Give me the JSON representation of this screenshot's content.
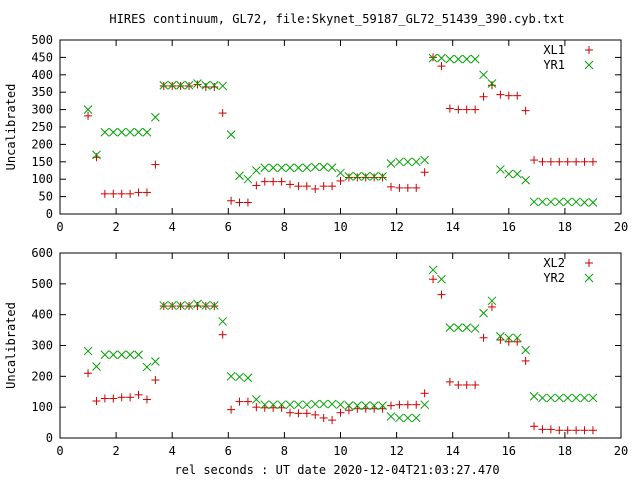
{
  "title": "HIRES continuum, GL72, file:Skynet_59187_GL72_51439_390.cyb.txt",
  "xlabel": "rel seconds : UT date 2020-12-04T21:03:27.470",
  "chart_data": [
    {
      "type": "scatter",
      "ylabel": "Uncalibrated",
      "xlim": [
        0,
        20
      ],
      "ylim": [
        0,
        500
      ],
      "xticks": [
        0,
        2,
        4,
        6,
        8,
        10,
        12,
        14,
        16,
        18,
        20
      ],
      "yticks": [
        0,
        50,
        100,
        150,
        200,
        250,
        300,
        350,
        400,
        450,
        500
      ],
      "legend_position": "top-right",
      "series": [
        {
          "name": "XL1",
          "marker": "plus",
          "color": "#cc0000",
          "points": [
            [
              1.0,
              282
            ],
            [
              1.3,
              163
            ],
            [
              1.6,
              58
            ],
            [
              1.9,
              58
            ],
            [
              2.2,
              58
            ],
            [
              2.5,
              58
            ],
            [
              2.8,
              62
            ],
            [
              3.1,
              62
            ],
            [
              3.4,
              142
            ],
            [
              3.7,
              368
            ],
            [
              4.0,
              368
            ],
            [
              4.3,
              368
            ],
            [
              4.6,
              368
            ],
            [
              4.9,
              372
            ],
            [
              5.2,
              365
            ],
            [
              5.5,
              365
            ],
            [
              5.8,
              290
            ],
            [
              6.1,
              38
            ],
            [
              6.4,
              33
            ],
            [
              6.7,
              33
            ],
            [
              7.0,
              82
            ],
            [
              7.3,
              93
            ],
            [
              7.6,
              93
            ],
            [
              7.9,
              93
            ],
            [
              8.2,
              85
            ],
            [
              8.5,
              80
            ],
            [
              8.8,
              80
            ],
            [
              9.1,
              72
            ],
            [
              9.4,
              80
            ],
            [
              9.7,
              80
            ],
            [
              10.0,
              95
            ],
            [
              10.3,
              105
            ],
            [
              10.6,
              105
            ],
            [
              10.9,
              105
            ],
            [
              11.2,
              105
            ],
            [
              11.5,
              105
            ],
            [
              11.8,
              78
            ],
            [
              12.1,
              75
            ],
            [
              12.4,
              75
            ],
            [
              12.7,
              75
            ],
            [
              13.0,
              120
            ],
            [
              13.3,
              450
            ],
            [
              13.6,
              425
            ],
            [
              13.9,
              303
            ],
            [
              14.2,
              300
            ],
            [
              14.5,
              300
            ],
            [
              14.8,
              300
            ],
            [
              15.1,
              337
            ],
            [
              15.4,
              370
            ],
            [
              15.7,
              343
            ],
            [
              16.0,
              340
            ],
            [
              16.3,
              340
            ],
            [
              16.6,
              297
            ],
            [
              16.9,
              155
            ],
            [
              17.2,
              150
            ],
            [
              17.5,
              150
            ],
            [
              17.8,
              150
            ],
            [
              18.1,
              150
            ],
            [
              18.4,
              150
            ],
            [
              18.7,
              150
            ],
            [
              19.0,
              150
            ]
          ]
        },
        {
          "name": "YR1",
          "marker": "cross",
          "color": "#00a000",
          "points": [
            [
              1.0,
              300
            ],
            [
              1.3,
              170
            ],
            [
              1.6,
              235
            ],
            [
              1.9,
              235
            ],
            [
              2.2,
              235
            ],
            [
              2.5,
              235
            ],
            [
              2.8,
              235
            ],
            [
              3.1,
              235
            ],
            [
              3.4,
              278
            ],
            [
              3.7,
              370
            ],
            [
              4.0,
              370
            ],
            [
              4.3,
              370
            ],
            [
              4.6,
              370
            ],
            [
              4.9,
              375
            ],
            [
              5.2,
              370
            ],
            [
              5.5,
              370
            ],
            [
              5.8,
              368
            ],
            [
              6.1,
              228
            ],
            [
              6.4,
              110
            ],
            [
              6.7,
              100
            ],
            [
              7.0,
              125
            ],
            [
              7.3,
              133
            ],
            [
              7.6,
              133
            ],
            [
              7.9,
              133
            ],
            [
              8.2,
              133
            ],
            [
              8.5,
              133
            ],
            [
              8.8,
              133
            ],
            [
              9.1,
              135
            ],
            [
              9.4,
              135
            ],
            [
              9.7,
              133
            ],
            [
              10.0,
              118
            ],
            [
              10.3,
              108
            ],
            [
              10.6,
              108
            ],
            [
              10.9,
              108
            ],
            [
              11.2,
              108
            ],
            [
              11.5,
              108
            ],
            [
              11.8,
              145
            ],
            [
              12.1,
              150
            ],
            [
              12.4,
              150
            ],
            [
              12.7,
              150
            ],
            [
              13.0,
              155
            ],
            [
              13.3,
              448
            ],
            [
              13.6,
              448
            ],
            [
              13.9,
              445
            ],
            [
              14.2,
              445
            ],
            [
              14.5,
              445
            ],
            [
              14.8,
              445
            ],
            [
              15.1,
              400
            ],
            [
              15.4,
              375
            ],
            [
              15.7,
              128
            ],
            [
              16.0,
              115
            ],
            [
              16.3,
              115
            ],
            [
              16.6,
              97
            ],
            [
              16.9,
              35
            ],
            [
              17.2,
              35
            ],
            [
              17.5,
              35
            ],
            [
              17.8,
              35
            ],
            [
              18.1,
              35
            ],
            [
              18.4,
              35
            ],
            [
              18.7,
              33
            ],
            [
              19.0,
              33
            ]
          ]
        }
      ]
    },
    {
      "type": "scatter",
      "ylabel": "Uncalibrated",
      "xlim": [
        0,
        20
      ],
      "ylim": [
        0,
        600
      ],
      "xticks": [
        0,
        2,
        4,
        6,
        8,
        10,
        12,
        14,
        16,
        18,
        20
      ],
      "yticks": [
        0,
        100,
        200,
        300,
        400,
        500,
        600
      ],
      "legend_position": "top-right",
      "series": [
        {
          "name": "XL2",
          "marker": "plus",
          "color": "#cc0000",
          "points": [
            [
              1.0,
              210
            ],
            [
              1.3,
              120
            ],
            [
              1.6,
              128
            ],
            [
              1.9,
              128
            ],
            [
              2.2,
              132
            ],
            [
              2.5,
              132
            ],
            [
              2.8,
              140
            ],
            [
              3.1,
              125
            ],
            [
              3.4,
              188
            ],
            [
              3.7,
              428
            ],
            [
              4.0,
              428
            ],
            [
              4.3,
              428
            ],
            [
              4.6,
              428
            ],
            [
              4.9,
              428
            ],
            [
              5.2,
              428
            ],
            [
              5.5,
              428
            ],
            [
              5.8,
              335
            ],
            [
              6.1,
              92
            ],
            [
              6.4,
              118
            ],
            [
              6.7,
              118
            ],
            [
              7.0,
              100
            ],
            [
              7.3,
              98
            ],
            [
              7.6,
              98
            ],
            [
              7.9,
              98
            ],
            [
              8.2,
              82
            ],
            [
              8.5,
              80
            ],
            [
              8.8,
              80
            ],
            [
              9.1,
              75
            ],
            [
              9.4,
              65
            ],
            [
              9.7,
              58
            ],
            [
              10.0,
              82
            ],
            [
              10.3,
              90
            ],
            [
              10.6,
              95
            ],
            [
              10.9,
              95
            ],
            [
              11.2,
              95
            ],
            [
              11.5,
              95
            ],
            [
              11.8,
              105
            ],
            [
              12.1,
              108
            ],
            [
              12.4,
              108
            ],
            [
              12.7,
              108
            ],
            [
              13.0,
              145
            ],
            [
              13.3,
              515
            ],
            [
              13.6,
              465
            ],
            [
              13.9,
              182
            ],
            [
              14.2,
              172
            ],
            [
              14.5,
              172
            ],
            [
              14.8,
              172
            ],
            [
              15.1,
              325
            ],
            [
              15.4,
              425
            ],
            [
              15.7,
              318
            ],
            [
              16.0,
              312
            ],
            [
              16.3,
              312
            ],
            [
              16.6,
              250
            ],
            [
              16.9,
              38
            ],
            [
              17.2,
              28
            ],
            [
              17.5,
              28
            ],
            [
              17.8,
              25
            ],
            [
              18.1,
              25
            ],
            [
              18.4,
              25
            ],
            [
              18.7,
              25
            ],
            [
              19.0,
              25
            ]
          ]
        },
        {
          "name": "YR2",
          "marker": "cross",
          "color": "#00a000",
          "points": [
            [
              1.0,
              282
            ],
            [
              1.3,
              232
            ],
            [
              1.6,
              270
            ],
            [
              1.9,
              270
            ],
            [
              2.2,
              270
            ],
            [
              2.5,
              270
            ],
            [
              2.8,
              270
            ],
            [
              3.1,
              230
            ],
            [
              3.4,
              248
            ],
            [
              3.7,
              430
            ],
            [
              4.0,
              430
            ],
            [
              4.3,
              430
            ],
            [
              4.6,
              430
            ],
            [
              4.9,
              435
            ],
            [
              5.2,
              430
            ],
            [
              5.5,
              430
            ],
            [
              5.8,
              378
            ],
            [
              6.1,
              200
            ],
            [
              6.4,
              198
            ],
            [
              6.7,
              195
            ],
            [
              7.0,
              125
            ],
            [
              7.3,
              108
            ],
            [
              7.6,
              108
            ],
            [
              7.9,
              108
            ],
            [
              8.2,
              108
            ],
            [
              8.5,
              108
            ],
            [
              8.8,
              108
            ],
            [
              9.1,
              110
            ],
            [
              9.4,
              110
            ],
            [
              9.7,
              110
            ],
            [
              10.0,
              108
            ],
            [
              10.3,
              105
            ],
            [
              10.6,
              105
            ],
            [
              10.9,
              105
            ],
            [
              11.2,
              105
            ],
            [
              11.5,
              105
            ],
            [
              11.8,
              70
            ],
            [
              12.1,
              65
            ],
            [
              12.4,
              65
            ],
            [
              12.7,
              65
            ],
            [
              13.0,
              108
            ],
            [
              13.3,
              545
            ],
            [
              13.6,
              515
            ],
            [
              13.9,
              358
            ],
            [
              14.2,
              358
            ],
            [
              14.5,
              358
            ],
            [
              14.8,
              355
            ],
            [
              15.1,
              405
            ],
            [
              15.4,
              445
            ],
            [
              15.7,
              330
            ],
            [
              16.0,
              325
            ],
            [
              16.3,
              325
            ],
            [
              16.6,
              285
            ],
            [
              16.9,
              135
            ],
            [
              17.2,
              130
            ],
            [
              17.5,
              130
            ],
            [
              17.8,
              130
            ],
            [
              18.1,
              130
            ],
            [
              18.4,
              130
            ],
            [
              18.7,
              130
            ],
            [
              19.0,
              130
            ]
          ]
        }
      ]
    }
  ]
}
